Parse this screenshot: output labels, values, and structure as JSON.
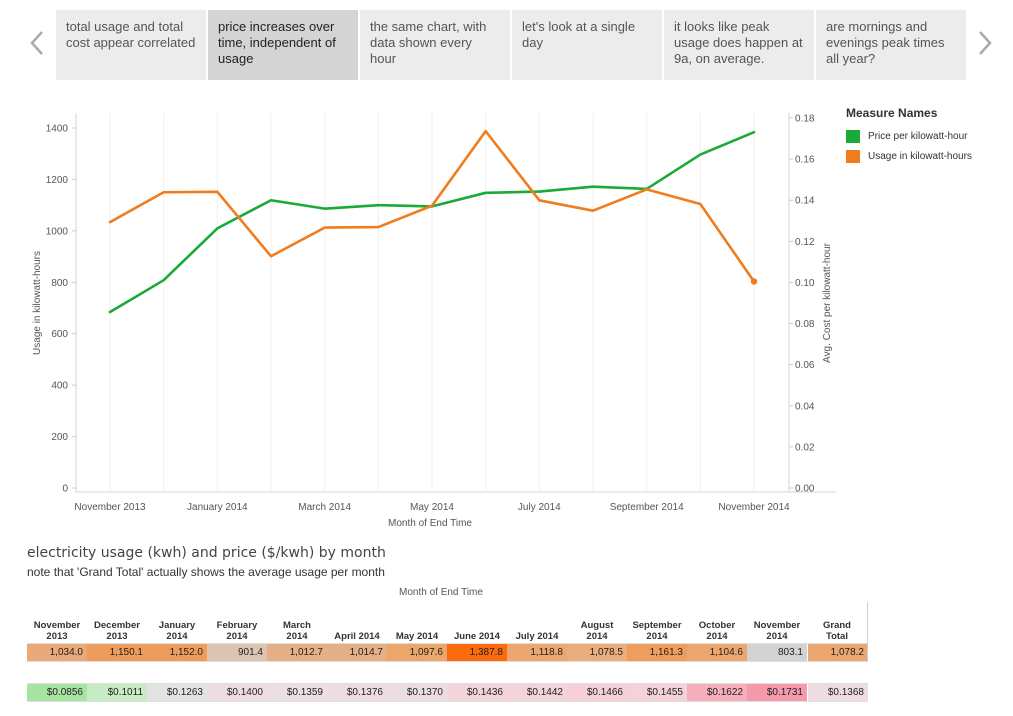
{
  "story_points": [
    {
      "label": "total usage and total cost appear correlated",
      "active": false
    },
    {
      "label": "price increases over time, independent of usage",
      "active": true
    },
    {
      "label": "the same chart, with data shown every hour",
      "active": false
    },
    {
      "label": "let's look at a single day",
      "active": false
    },
    {
      "label": "it looks like peak usage does happen at 9a, on average.",
      "active": false
    },
    {
      "label": "are mornings and evenings peak times all year?",
      "active": false
    }
  ],
  "legend": {
    "title": "Measure Names",
    "items": [
      {
        "label": "Price per kilowatt-hour",
        "color": "#1aaa38"
      },
      {
        "label": "Usage in kilowatt-hours",
        "color": "#f07c1d"
      }
    ]
  },
  "chart_data": {
    "type": "line",
    "xlabel": "Month of End Time",
    "ylabel_left": "Usage in kilowatt-hours",
    "ylabel_right": "Avg. Cost per kilowatt-hour",
    "x": [
      "Nov 2013",
      "Dec 2013",
      "Jan 2014",
      "Feb 2014",
      "Mar 2014",
      "Apr 2014",
      "May 2014",
      "Jun 2014",
      "Jul 2014",
      "Aug 2014",
      "Sep 2014",
      "Oct 2014",
      "Nov 2014"
    ],
    "x_tick_labels": [
      {
        "label": "November 2013",
        "index": 0
      },
      {
        "label": "January 2014",
        "index": 2
      },
      {
        "label": "March 2014",
        "index": 4
      },
      {
        "label": "May 2014",
        "index": 6
      },
      {
        "label": "July 2014",
        "index": 8
      },
      {
        "label": "September 2014",
        "index": 10
      },
      {
        "label": "November 2014",
        "index": 12
      }
    ],
    "y_left_ticks": [
      "0",
      "200",
      "400",
      "600",
      "800",
      "1000",
      "1200",
      "1400"
    ],
    "y_left_range": [
      0,
      1400
    ],
    "y_right_ticks": [
      "0.00",
      "0.02",
      "0.04",
      "0.06",
      "0.08",
      "0.10",
      "0.12",
      "0.14",
      "0.16",
      "0.18"
    ],
    "y_right_range": [
      0,
      0.18
    ],
    "series": [
      {
        "name": "Price per kilowatt-hour",
        "axis": "right",
        "color": "#1aaa38",
        "values": [
          0.0856,
          0.1011,
          0.1263,
          0.14,
          0.1359,
          0.1376,
          0.137,
          0.1436,
          0.1442,
          0.1466,
          0.1455,
          0.1622,
          0.1731
        ]
      },
      {
        "name": "Usage in kilowatt-hours",
        "axis": "left",
        "color": "#f07c1d",
        "values": [
          1034.0,
          1150.1,
          1152.0,
          901.4,
          1012.7,
          1014.7,
          1097.6,
          1387.8,
          1118.8,
          1078.5,
          1161.3,
          1104.6,
          803.1
        ]
      }
    ]
  },
  "table": {
    "title": "electricity usage (kwh) and price ($/kwh) by month",
    "note": "note that 'Grand Total' actually shows the average usage per month",
    "column_title": "Month of End Time",
    "headers": [
      [
        "November",
        "2013"
      ],
      [
        "December",
        "2013"
      ],
      [
        "January",
        "2014"
      ],
      [
        "February",
        "2014"
      ],
      [
        "March",
        "2014"
      ],
      [
        "",
        "April 2014"
      ],
      [
        "",
        "May 2014"
      ],
      [
        "",
        "June 2014"
      ],
      [
        "",
        "July 2014"
      ],
      [
        "August",
        "2014"
      ],
      [
        "September",
        "2014"
      ],
      [
        "October",
        "2014"
      ],
      [
        "November",
        "2014"
      ],
      [
        "Grand",
        "Total"
      ]
    ],
    "usage_row": [
      "1,034.0",
      "1,150.1",
      "1,152.0",
      "901.4",
      "1,012.7",
      "1,014.7",
      "1,097.6",
      "1,387.8",
      "1,118.8",
      "1,078.5",
      "1,161.3",
      "1,104.6",
      "803.1",
      "1,078.2"
    ],
    "usage_colors": [
      "#e9a978",
      "#ee9c5c",
      "#ee9c5c",
      "#dcc5b2",
      "#e6b087",
      "#e6b087",
      "#eca66c",
      "#fb6a0c",
      "#eca770",
      "#e9ad7e",
      "#ef9d5c",
      "#eca670",
      "#d2d2d2",
      "#eca670"
    ],
    "price_row": [
      "$0.0856",
      "$0.1011",
      "$0.1263",
      "$0.1400",
      "$0.1359",
      "$0.1376",
      "$0.1370",
      "$0.1436",
      "$0.1442",
      "$0.1466",
      "$0.1455",
      "$0.1622",
      "$0.1731",
      "$0.1368"
    ],
    "price_colors": [
      "#a7e4a2",
      "#c7ebc2",
      "#e2e4e2",
      "#eedde0",
      "#ebdfe1",
      "#eedde0",
      "#ecdee0",
      "#f3d4d9",
      "#f3d4d9",
      "#f5d0d6",
      "#f4d2d8",
      "#f7aebb",
      "#f59aab",
      "#eedde0"
    ]
  }
}
